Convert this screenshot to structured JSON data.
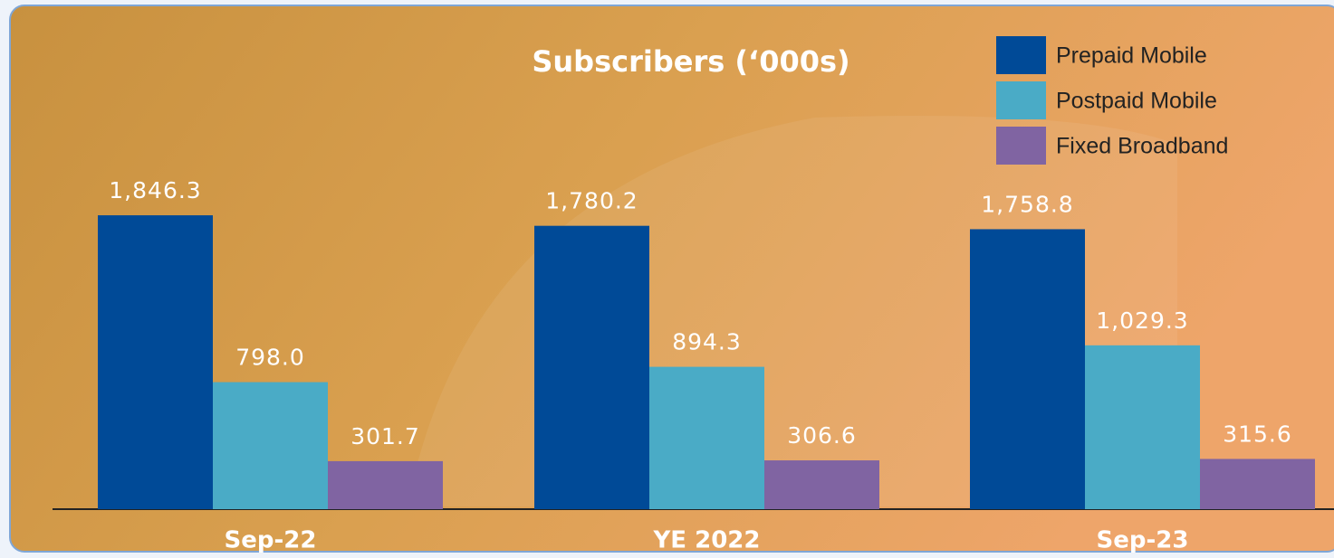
{
  "chart_data": {
    "type": "bar",
    "title": "Subscribers (‘000s)",
    "categories": [
      "Sep-22",
      "YE 2022",
      "Sep-23"
    ],
    "series": [
      {
        "name": "Prepaid Mobile",
        "color": "#004a97",
        "values": [
          1846.3,
          1780.2,
          1758.8
        ],
        "value_labels": [
          "1,846.3",
          "1,780.2",
          "1,758.8"
        ]
      },
      {
        "name": "Postpaid Mobile",
        "color": "#4aabc6",
        "values": [
          798.0,
          894.3,
          1029.3
        ],
        "value_labels": [
          "798.0",
          "894.3",
          "1,029.3"
        ]
      },
      {
        "name": "Fixed Broadband",
        "color": "#8064a2",
        "values": [
          301.7,
          306.6,
          315.6
        ],
        "value_labels": [
          "301.7",
          "306.6",
          "315.6"
        ]
      }
    ],
    "legend": "top-right"
  }
}
